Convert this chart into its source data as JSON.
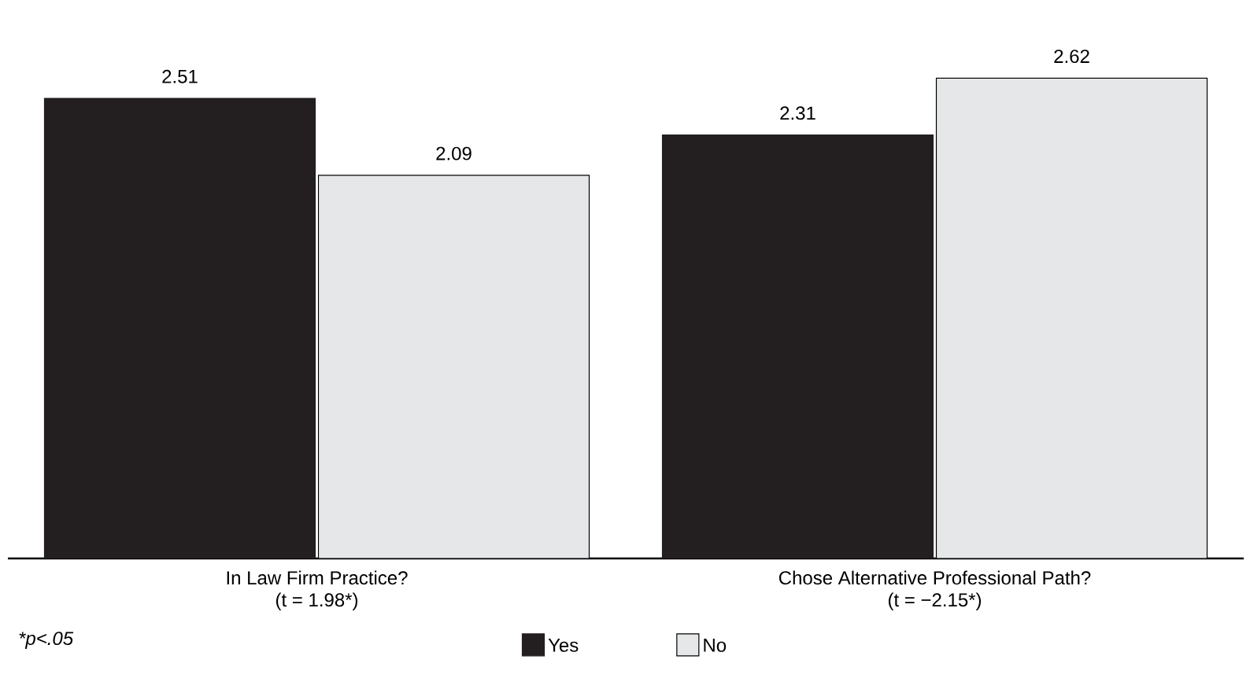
{
  "chart_data": {
    "type": "bar",
    "categories": [
      "In Law Firm Practice?",
      "Chose Alternative Professional Path?"
    ],
    "series": [
      {
        "name": "Yes",
        "color": "#231f20",
        "values": [
          2.51,
          2.31
        ]
      },
      {
        "name": "No",
        "color": "#e6e7e8",
        "values": [
          2.09,
          2.62
        ]
      }
    ],
    "data_labels": true,
    "legend": "bottom",
    "annotations": [
      "(t = 1.98*)",
      "(t = −2.15*)",
      "*p<.05"
    ]
  }
}
